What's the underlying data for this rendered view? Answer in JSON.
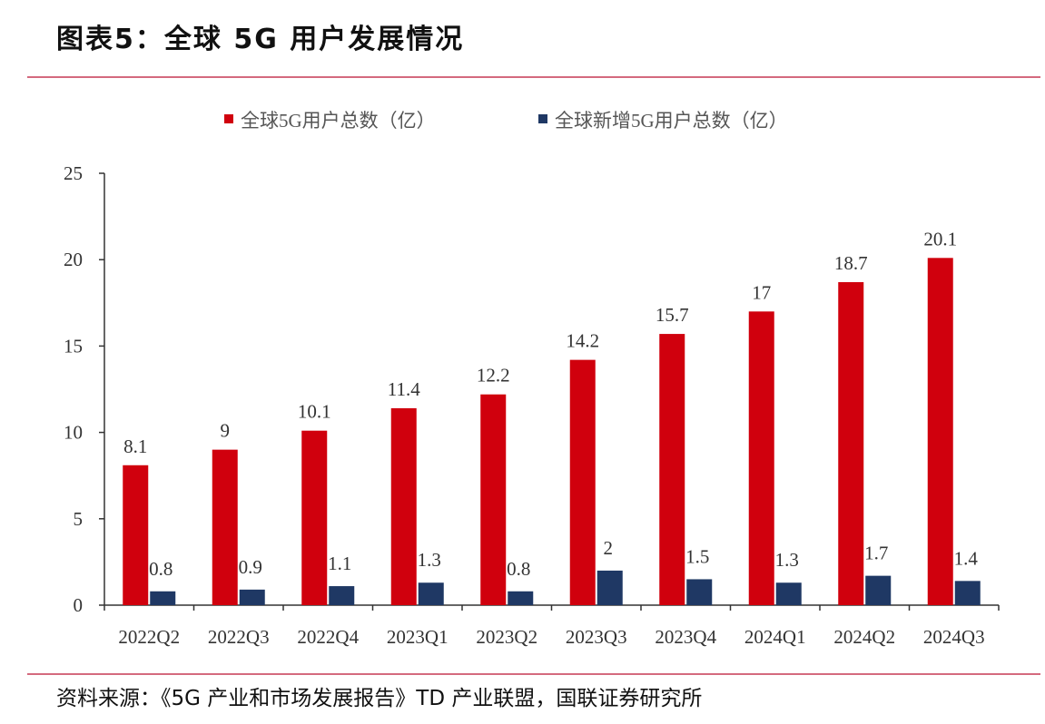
{
  "figure": {
    "title": "图表5：全球 5G 用户发展情况",
    "source": "资料来源：《5G 产业和市场发展报告》TD 产业联盟，国联证券研究所"
  },
  "colors": {
    "total": "#d0000d",
    "new": "#1f3864",
    "rule": "#d46a7e",
    "axis": "#333333",
    "text": "#333333"
  },
  "chart_data": {
    "type": "bar",
    "categories": [
      "2022Q2",
      "2022Q3",
      "2022Q4",
      "2023Q1",
      "2023Q2",
      "2023Q3",
      "2023Q4",
      "2024Q1",
      "2024Q2",
      "2024Q3"
    ],
    "series": [
      {
        "name": "全球5G用户总数（亿）",
        "values": [
          8.1,
          9,
          10.1,
          11.4,
          12.2,
          14.2,
          15.7,
          17,
          18.7,
          20.1
        ],
        "labels": [
          "8.1",
          "9",
          "10.1",
          "11.4",
          "12.2",
          "14.2",
          "15.7",
          "17",
          "18.7",
          "20.1"
        ]
      },
      {
        "name": "全球新增5G用户总数（亿）",
        "values": [
          0.8,
          0.9,
          1.1,
          1.3,
          0.8,
          2,
          1.5,
          1.3,
          1.7,
          1.4
        ],
        "labels": [
          "0.8",
          "0.9",
          "1.1",
          "1.3",
          "0.8",
          "2",
          "1.5",
          "1.3",
          "1.7",
          "1.4"
        ]
      }
    ],
    "ylim": [
      0,
      25
    ],
    "yticks": [
      "0",
      "5",
      "10",
      "15",
      "20",
      "25"
    ],
    "xlabel": "",
    "ylabel": "",
    "legend_position": "top-center",
    "grid": false
  }
}
